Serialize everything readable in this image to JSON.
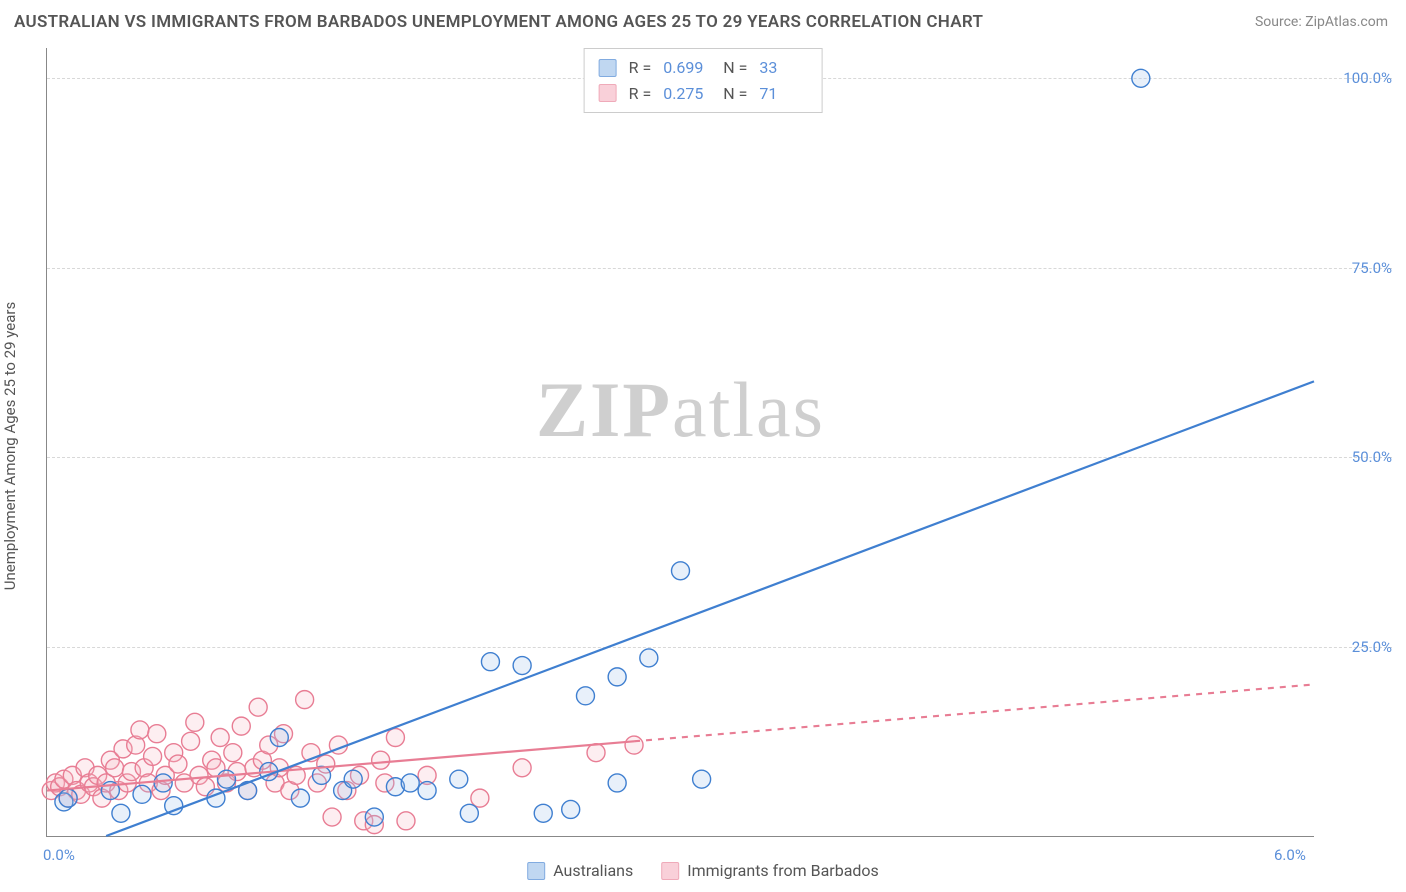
{
  "title": "AUSTRALIAN VS IMMIGRANTS FROM BARBADOS UNEMPLOYMENT AMONG AGES 25 TO 29 YEARS CORRELATION CHART",
  "source": "Source: ZipAtlas.com",
  "watermark": {
    "bold": "ZIP",
    "light": "atlas"
  },
  "ylabel": "Unemployment Among Ages 25 to 29 years",
  "chart": {
    "type": "scatter",
    "background_color": "#ffffff",
    "grid_color": "#d8d8d8",
    "axis_color": "#888888",
    "xlim": [
      0.0,
      6.0
    ],
    "ylim": [
      0.0,
      104.0
    ],
    "x_ticks": [
      {
        "value": 0.0,
        "label": "0.0%"
      },
      {
        "value": 6.0,
        "label": "6.0%"
      }
    ],
    "y_ticks": [
      {
        "value": 25.0,
        "label": "25.0%"
      },
      {
        "value": 50.0,
        "label": "50.0%"
      },
      {
        "value": 75.0,
        "label": "75.0%"
      },
      {
        "value": 100.0,
        "label": "100.0%"
      }
    ],
    "label_color": "#5b8fd9",
    "label_fontsize": 15,
    "title_fontsize": 17,
    "marker_radius": 9,
    "marker_stroke_width": 1.4,
    "marker_fill_opacity": 0.24,
    "trendline_width": 2.2
  },
  "series": {
    "australians": {
      "label": "Australians",
      "R": "0.699",
      "N": "33",
      "color_stroke": "#3f7fd0",
      "color_fill": "#9fc2ea",
      "trendline": {
        "x1": 0.28,
        "y1": 0.0,
        "x2": 6.0,
        "y2": 60.0,
        "dash": ""
      },
      "points": [
        [
          0.08,
          4.5
        ],
        [
          0.1,
          5.0
        ],
        [
          0.3,
          6.0
        ],
        [
          0.35,
          3.0
        ],
        [
          0.45,
          5.5
        ],
        [
          0.55,
          7.0
        ],
        [
          0.6,
          4.0
        ],
        [
          0.8,
          5.0
        ],
        [
          0.85,
          7.5
        ],
        [
          0.95,
          6.0
        ],
        [
          1.05,
          8.5
        ],
        [
          1.1,
          13.0
        ],
        [
          1.2,
          5.0
        ],
        [
          1.3,
          8.0
        ],
        [
          1.4,
          6.0
        ],
        [
          1.45,
          7.5
        ],
        [
          1.55,
          2.5
        ],
        [
          1.65,
          6.5
        ],
        [
          1.72,
          7.0
        ],
        [
          1.8,
          6.0
        ],
        [
          1.95,
          7.5
        ],
        [
          2.0,
          3.0
        ],
        [
          2.1,
          23.0
        ],
        [
          2.25,
          22.5
        ],
        [
          2.35,
          3.0
        ],
        [
          2.55,
          18.5
        ],
        [
          2.7,
          21.0
        ],
        [
          2.7,
          7.0
        ],
        [
          2.85,
          23.5
        ],
        [
          3.0,
          35.0
        ],
        [
          3.1,
          7.5
        ],
        [
          5.18,
          100.0
        ],
        [
          2.48,
          3.5
        ]
      ]
    },
    "barbados": {
      "label": "Immigrants from Barbados",
      "R": "0.275",
      "N": "71",
      "color_stroke": "#e87d94",
      "color_fill": "#f6b8c6",
      "trendline_solid": {
        "x1": 0.0,
        "y1": 6.0,
        "x2": 2.78,
        "y2": 12.5,
        "dash": ""
      },
      "trendline_dash": {
        "x1": 2.78,
        "y1": 12.5,
        "x2": 6.0,
        "y2": 20.0,
        "dash": "6 6"
      },
      "points": [
        [
          0.02,
          6.0
        ],
        [
          0.04,
          7.0
        ],
        [
          0.06,
          6.5
        ],
        [
          0.08,
          7.5
        ],
        [
          0.1,
          5.0
        ],
        [
          0.12,
          8.0
        ],
        [
          0.14,
          6.0
        ],
        [
          0.16,
          5.5
        ],
        [
          0.18,
          9.0
        ],
        [
          0.2,
          7.0
        ],
        [
          0.22,
          6.5
        ],
        [
          0.24,
          8.0
        ],
        [
          0.26,
          5.0
        ],
        [
          0.28,
          7.0
        ],
        [
          0.3,
          10.0
        ],
        [
          0.32,
          9.0
        ],
        [
          0.34,
          6.0
        ],
        [
          0.36,
          11.5
        ],
        [
          0.38,
          7.0
        ],
        [
          0.4,
          8.5
        ],
        [
          0.42,
          12.0
        ],
        [
          0.44,
          14.0
        ],
        [
          0.46,
          9.0
        ],
        [
          0.48,
          7.0
        ],
        [
          0.5,
          10.5
        ],
        [
          0.52,
          13.5
        ],
        [
          0.54,
          6.0
        ],
        [
          0.56,
          8.0
        ],
        [
          0.6,
          11.0
        ],
        [
          0.62,
          9.5
        ],
        [
          0.65,
          7.0
        ],
        [
          0.68,
          12.5
        ],
        [
          0.7,
          15.0
        ],
        [
          0.72,
          8.0
        ],
        [
          0.75,
          6.5
        ],
        [
          0.78,
          10.0
        ],
        [
          0.8,
          9.0
        ],
        [
          0.82,
          13.0
        ],
        [
          0.85,
          7.0
        ],
        [
          0.88,
          11.0
        ],
        [
          0.9,
          8.5
        ],
        [
          0.92,
          14.5
        ],
        [
          0.95,
          6.0
        ],
        [
          0.98,
          9.0
        ],
        [
          1.0,
          17.0
        ],
        [
          1.02,
          10.0
        ],
        [
          1.05,
          12.0
        ],
        [
          1.08,
          7.0
        ],
        [
          1.1,
          9.0
        ],
        [
          1.12,
          13.5
        ],
        [
          1.15,
          6.0
        ],
        [
          1.18,
          8.0
        ],
        [
          1.22,
          18.0
        ],
        [
          1.25,
          11.0
        ],
        [
          1.28,
          7.0
        ],
        [
          1.32,
          9.5
        ],
        [
          1.35,
          2.5
        ],
        [
          1.38,
          12.0
        ],
        [
          1.42,
          6.0
        ],
        [
          1.48,
          8.0
        ],
        [
          1.5,
          2.0
        ],
        [
          1.55,
          1.5
        ],
        [
          1.58,
          10.0
        ],
        [
          1.6,
          7.0
        ],
        [
          1.65,
          13.0
        ],
        [
          1.7,
          2.0
        ],
        [
          1.8,
          8.0
        ],
        [
          2.05,
          5.0
        ],
        [
          2.25,
          9.0
        ],
        [
          2.6,
          11.0
        ],
        [
          2.78,
          12.0
        ]
      ]
    }
  },
  "legend_top": {
    "r_label": "R =",
    "n_label": "N ="
  }
}
